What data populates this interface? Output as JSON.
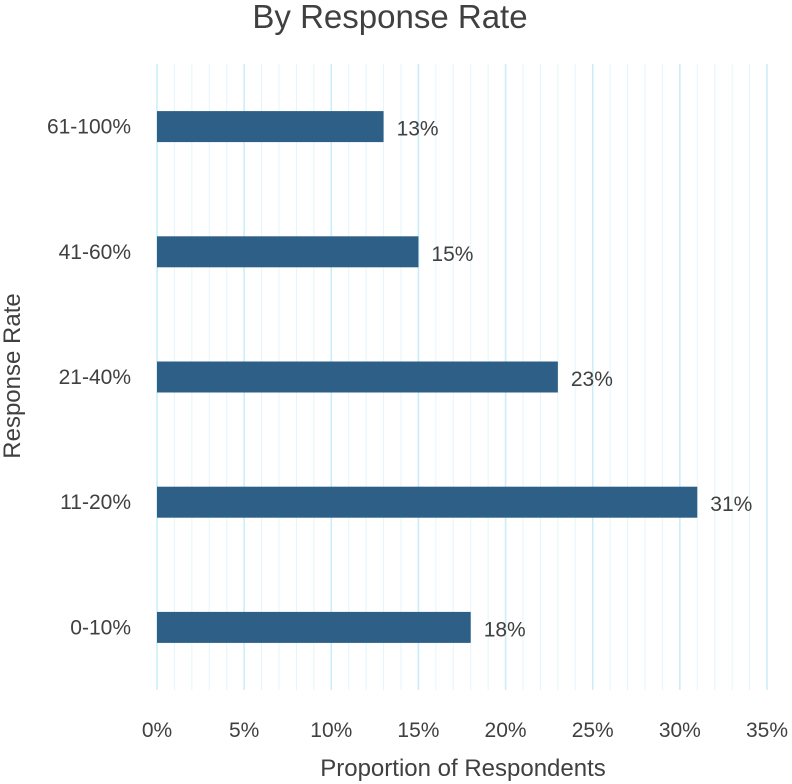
{
  "chart_data": {
    "type": "bar",
    "orientation": "horizontal",
    "title": "By Response Rate",
    "xlabel": "Proportion of Respondents",
    "ylabel": "Response Rate",
    "categories": [
      "61-100%",
      "41-60%",
      "21-40%",
      "11-20%",
      "0-10%"
    ],
    "values": [
      13,
      15,
      23,
      31,
      18
    ],
    "data_labels": [
      "13%",
      "15%",
      "23%",
      "31%",
      "18%"
    ],
    "x_ticks": [
      "0%",
      "5%",
      "10%",
      "15%",
      "20%",
      "25%",
      "30%",
      "35%"
    ],
    "xlim": [
      0,
      35
    ],
    "grid": true,
    "colors": {
      "bar": "#2e5f87",
      "major_grid": "#c9eef7",
      "minor_grid": "#e3f6fb",
      "text": "#404040"
    }
  }
}
